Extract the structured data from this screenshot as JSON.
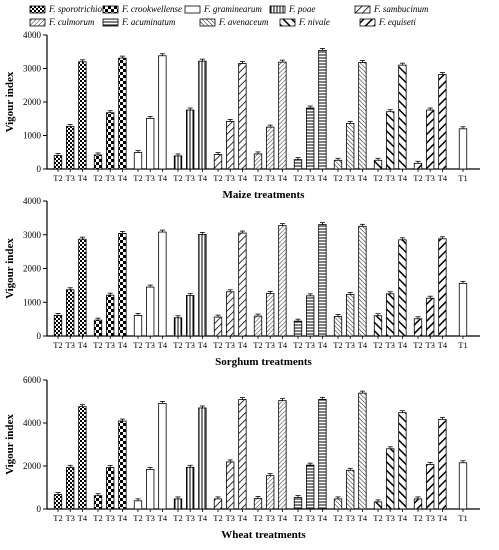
{
  "legend": [
    {
      "label": "F. sporotrichioides",
      "pattern": "checker"
    },
    {
      "label": "F. crookwellense",
      "pattern": "checker-bold"
    },
    {
      "label": "F. graminearum",
      "pattern": "plain"
    },
    {
      "label": "F. poae",
      "pattern": "vlines"
    },
    {
      "label": "F. sambucinum",
      "pattern": "diag-right"
    },
    {
      "label": "F. culmorum",
      "pattern": "diag-thin"
    },
    {
      "label": "F. acuminatum",
      "pattern": "hlines"
    },
    {
      "label": "F. avenaceum",
      "pattern": "diag-dense"
    },
    {
      "label": "F. nivale",
      "pattern": "diag-left-bold"
    },
    {
      "label": "F. equiseti",
      "pattern": "diag-right-bold"
    }
  ],
  "chart_data": [
    {
      "type": "bar",
      "title": "",
      "xlabel": "Maize treatments",
      "ylabel": "Vigour index",
      "ylim": [
        0,
        4000
      ],
      "yticks": [
        0,
        1000,
        2000,
        3000,
        4000
      ],
      "group_tick_labels": [
        "T2",
        "T3",
        "T4"
      ],
      "control": {
        "label": "T1",
        "value": 1200
      },
      "series": [
        {
          "name": "F. sporotrichioides",
          "values": [
            400,
            1270,
            3200
          ]
        },
        {
          "name": "F. crookwellense",
          "values": [
            420,
            1680,
            3310
          ]
        },
        {
          "name": "F. graminearum",
          "values": [
            490,
            1510,
            3380
          ]
        },
        {
          "name": "F. poae",
          "values": [
            390,
            1760,
            3220
          ]
        },
        {
          "name": "F. sambucinum",
          "values": [
            430,
            1420,
            3150
          ]
        },
        {
          "name": "F. culmorum",
          "values": [
            450,
            1250,
            3190
          ]
        },
        {
          "name": "F. acuminatum",
          "values": [
            280,
            1820,
            3540
          ]
        },
        {
          "name": "F. avenaceum",
          "values": [
            260,
            1360,
            3180
          ]
        },
        {
          "name": "F. nivale",
          "values": [
            260,
            1710,
            3100
          ]
        },
        {
          "name": "F. equiseti",
          "values": [
            170,
            1760,
            2820
          ]
        }
      ]
    },
    {
      "type": "bar",
      "title": "",
      "xlabel": "Sorghum treatments",
      "ylabel": "Vigour index",
      "ylim": [
        0,
        4000
      ],
      "yticks": [
        0,
        1000,
        2000,
        3000,
        4000
      ],
      "group_tick_labels": [
        "T2",
        "T3",
        "T4"
      ],
      "control": {
        "label": "T1",
        "value": 1560
      },
      "series": [
        {
          "name": "F. sporotrichioides",
          "values": [
            610,
            1370,
            2870
          ]
        },
        {
          "name": "F. crookwellense",
          "values": [
            470,
            1210,
            3040
          ]
        },
        {
          "name": "F. graminearum",
          "values": [
            610,
            1450,
            3080
          ]
        },
        {
          "name": "F. poae",
          "values": [
            540,
            1200,
            3010
          ]
        },
        {
          "name": "F. sambucinum",
          "values": [
            560,
            1310,
            3050
          ]
        },
        {
          "name": "F. culmorum",
          "values": [
            590,
            1260,
            3270
          ]
        },
        {
          "name": "F. acuminatum",
          "values": [
            440,
            1190,
            3300
          ]
        },
        {
          "name": "F. avenaceum",
          "values": [
            580,
            1230,
            3250
          ]
        },
        {
          "name": "F. nivale",
          "values": [
            600,
            1250,
            2850
          ]
        },
        {
          "name": "F. equiseti",
          "values": [
            510,
            1120,
            2880
          ]
        }
      ]
    },
    {
      "type": "bar",
      "title": "",
      "xlabel": "Wheat treatments",
      "ylabel": "Vigour index",
      "ylim": [
        0,
        6000
      ],
      "yticks": [
        0,
        2000,
        4000,
        6000
      ],
      "group_tick_labels": [
        "T2",
        "T3",
        "T4"
      ],
      "control": {
        "label": "T1",
        "value": 2150
      },
      "series": [
        {
          "name": "F. sporotrichioides",
          "values": [
            670,
            1940,
            4760
          ]
        },
        {
          "name": "F. crookwellense",
          "values": [
            620,
            1930,
            4090
          ]
        },
        {
          "name": "F. graminearum",
          "values": [
            380,
            1840,
            4910
          ]
        },
        {
          "name": "F. poae",
          "values": [
            470,
            1940,
            4700
          ]
        },
        {
          "name": "F. sambucinum",
          "values": [
            470,
            2190,
            5090
          ]
        },
        {
          "name": "F. culmorum",
          "values": [
            490,
            1550,
            5040
          ]
        },
        {
          "name": "F. acuminatum",
          "values": [
            530,
            2040,
            5100
          ]
        },
        {
          "name": "F. avenaceum",
          "values": [
            470,
            1800,
            5390
          ]
        },
        {
          "name": "F. nivale",
          "values": [
            330,
            2800,
            4480
          ]
        },
        {
          "name": "F. equiseti",
          "values": [
            470,
            2070,
            4170
          ]
        }
      ]
    }
  ]
}
